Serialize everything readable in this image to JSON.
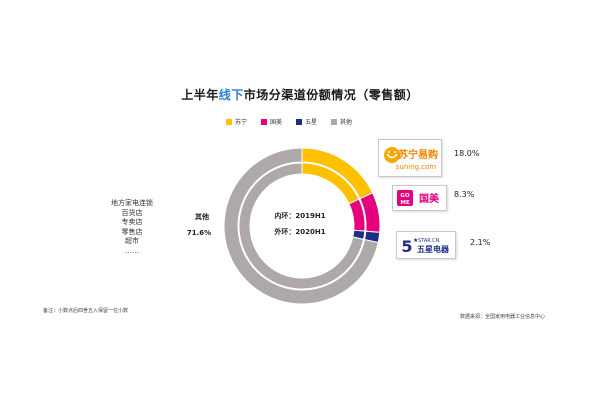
{
  "title_prefix": "上半年",
  "title_highlight": "线下",
  "title_suffix": "市场分渠道份额情况（零售额）",
  "legend": [
    {
      "name": "苏宁",
      "color": "#FFC000"
    },
    {
      "name": "国美",
      "color": "#E6007E"
    },
    {
      "name": "五星",
      "color": "#1F2D86"
    },
    {
      "name": "其他",
      "color": "#AFA8A8"
    }
  ],
  "center": {
    "inner_label": "内环：2019H1",
    "outer_label": "外环：2020H1"
  },
  "other_label": {
    "name": "其他",
    "value": "71.6%"
  },
  "left_list": [
    "地方家电连锁",
    "百货店",
    "专卖店",
    "零售店",
    "超市",
    "……"
  ],
  "segment_labels": [
    {
      "text": "18.0%"
    },
    {
      "text": "8.3%"
    },
    {
      "text": "2.1%"
    }
  ],
  "logos": {
    "suning": {
      "cn": "苏宁易购",
      "en": "suning.com"
    },
    "gome": {
      "badge_top": "GO",
      "badge_bottom": "ME",
      "cn": "国美"
    },
    "five_star": {
      "digit": "5",
      "star": "★",
      "en": "STAR.CN",
      "cn": "五星电器"
    }
  },
  "note_left": "备注：小数点后四舍五入保留一位小数",
  "note_right": "数据来源：全国家用电器工业信息中心",
  "chart_data": {
    "type": "pie",
    "title": "上半年线下市场分渠道份额情况（零售额）",
    "categories": [
      "苏宁",
      "国美",
      "五星",
      "其他"
    ],
    "series": [
      {
        "name": "2020H1",
        "ring": "outer",
        "values": [
          18.0,
          8.3,
          2.1,
          71.6
        ]
      },
      {
        "name": "2019H1",
        "ring": "inner",
        "values": [
          18.0,
          8.3,
          2.1,
          71.6
        ]
      }
    ],
    "colors": [
      "#FFC000",
      "#E6007E",
      "#1F2D86",
      "#AFA8A8"
    ],
    "unit": "%"
  }
}
